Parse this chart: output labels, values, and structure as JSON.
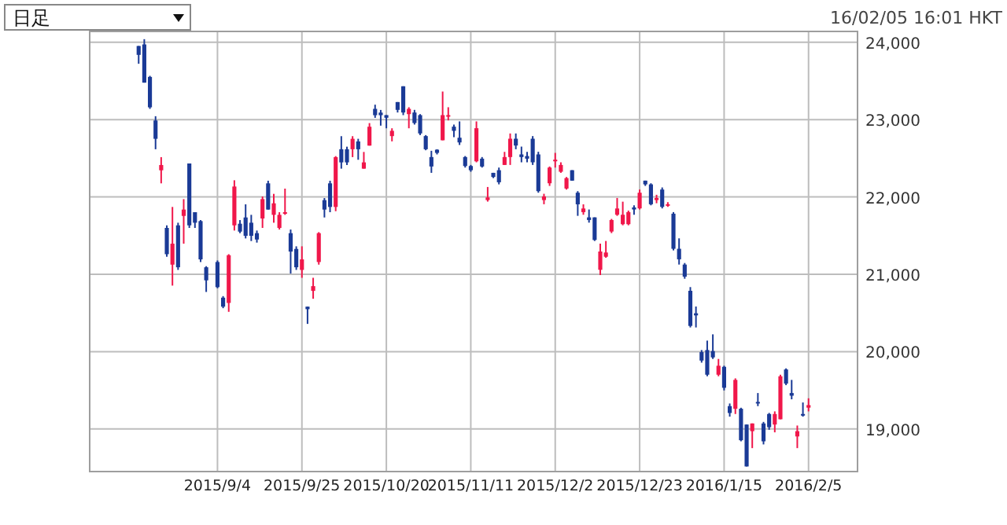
{
  "chart_data": {
    "type": "candlestick",
    "title": "日足",
    "annotations": [
      "16/02/05 16:01 HKT"
    ],
    "categories": [
      null,
      null,
      null,
      null,
      null,
      null,
      null,
      null,
      null,
      null,
      null,
      null,
      null,
      null,
      "2015/9/4",
      null,
      null,
      null,
      null,
      null,
      null,
      null,
      null,
      null,
      null,
      null,
      null,
      null,
      null,
      "2015/9/25",
      null,
      null,
      null,
      null,
      null,
      null,
      null,
      null,
      null,
      null,
      null,
      null,
      null,
      null,
      "2015/10/20",
      null,
      null,
      null,
      null,
      null,
      null,
      null,
      null,
      null,
      null,
      null,
      null,
      null,
      null,
      "2015/11/11",
      null,
      null,
      null,
      null,
      null,
      null,
      null,
      null,
      null,
      null,
      null,
      null,
      null,
      null,
      "2015/12/2",
      null,
      null,
      null,
      null,
      null,
      null,
      null,
      null,
      null,
      null,
      null,
      null,
      null,
      null,
      "2015/12/23",
      null,
      null,
      null,
      null,
      null,
      null,
      null,
      null,
      null,
      null,
      null,
      null,
      null,
      null,
      "2016/1/15",
      null,
      null,
      null,
      null,
      null,
      null,
      null,
      null,
      null,
      null,
      null,
      null,
      null,
      null,
      "2016/2/5"
    ],
    "ohlc": [
      [
        23952,
        23952,
        23722,
        23837
      ],
      [
        23972,
        24040,
        23478,
        23478
      ],
      [
        23552,
        23566,
        23139,
        23159
      ],
      [
        22989,
        23044,
        22617,
        22752
      ],
      [
        22345,
        22515,
        22176,
        22413
      ],
      [
        21600,
        21633,
        21227,
        21260
      ],
      [
        21125,
        21871,
        20854,
        21396
      ],
      [
        21633,
        21667,
        21057,
        21091
      ],
      [
        21755,
        21972,
        21396,
        21837
      ],
      [
        22433,
        22433,
        21600,
        21633
      ],
      [
        21803,
        21803,
        21600,
        21667
      ],
      [
        21688,
        21701,
        21159,
        21193
      ],
      [
        21091,
        21105,
        20772,
        20922
      ],
      null,
      [
        21159,
        21179,
        20820,
        20834
      ],
      [
        20698,
        20718,
        20562,
        20582
      ],
      [
        20630,
        21260,
        20515,
        21247
      ],
      [
        21633,
        22216,
        21566,
        22135
      ],
      [
        21654,
        21701,
        21532,
        21552
      ],
      [
        21735,
        21905,
        21464,
        21498
      ],
      [
        21667,
        21769,
        21430,
        21498
      ],
      [
        21532,
        21566,
        21410,
        21450
      ],
      [
        21722,
        22006,
        21600,
        21972
      ],
      [
        22176,
        22210,
        21837,
        21837
      ],
      [
        21769,
        22040,
        21667,
        21918
      ],
      [
        21600,
        21803,
        21579,
        21769
      ],
      [
        21783,
        22108,
        21769,
        21803
      ],
      [
        21532,
        21579,
        21010,
        21294
      ],
      [
        21328,
        21362,
        21057,
        21091
      ],
      [
        21057,
        21362,
        20955,
        21193
      ],
      [
        20582,
        20582,
        20359,
        20549
      ],
      [
        20786,
        20955,
        20684,
        20847
      ],
      [
        21159,
        21545,
        21125,
        21532
      ],
      [
        21959,
        21986,
        21735,
        21837
      ],
      [
        22176,
        22210,
        21803,
        21871
      ],
      [
        21871,
        22528,
        21816,
        22515
      ],
      [
        22617,
        22786,
        22366,
        22447
      ],
      [
        22617,
        22650,
        22413,
        22447
      ],
      [
        22617,
        22786,
        22515,
        22752
      ],
      [
        22718,
        22752,
        22481,
        22617
      ],
      [
        22366,
        22582,
        22366,
        22447
      ],
      [
        22664,
        22955,
        22664,
        22908
      ],
      [
        23139,
        23193,
        23023,
        23057
      ],
      [
        23091,
        23125,
        22922,
        23057
      ],
      [
        23058,
        23058,
        22888,
        23024
      ],
      [
        22787,
        22888,
        22719,
        22855
      ],
      [
        23227,
        23227,
        23092,
        23126
      ],
      [
        23431,
        23431,
        23058,
        23092
      ],
      [
        23071,
        23160,
        22888,
        23139
      ],
      [
        23092,
        23126,
        22936,
        22956
      ],
      [
        23058,
        23071,
        22800,
        22821
      ],
      [
        22787,
        22800,
        22604,
        22617
      ],
      [
        22516,
        22597,
        22312,
        22394
      ],
      [
        22611,
        22617,
        22550,
        22570
      ],
      [
        22733,
        23363,
        22733,
        23058
      ],
      [
        23044,
        23160,
        22990,
        23058
      ],
      [
        22909,
        22936,
        22773,
        22855
      ],
      [
        22766,
        22977,
        22672,
        22705
      ],
      [
        22516,
        22529,
        22380,
        22400
      ],
      [
        22400,
        22414,
        22326,
        22346
      ],
      [
        22461,
        22977,
        22448,
        22889
      ],
      [
        22495,
        22516,
        22380,
        22394
      ],
      [
        21960,
        22129,
        21940,
        21994
      ],
      [
        22312,
        22312,
        22244,
        22258
      ],
      [
        22346,
        22380,
        22163,
        22190
      ],
      [
        22414,
        22583,
        22414,
        22516
      ],
      [
        22516,
        22821,
        22414,
        22753
      ],
      [
        22753,
        22821,
        22617,
        22665
      ],
      [
        22550,
        22651,
        22448,
        22516
      ],
      [
        22529,
        22583,
        22448,
        22495
      ],
      [
        22753,
        22787,
        22414,
        22448
      ],
      [
        22550,
        22584,
        22055,
        22075
      ],
      [
        21960,
        22041,
        21906,
        22007
      ],
      [
        22177,
        22394,
        22143,
        22380
      ],
      [
        22461,
        22570,
        22380,
        22482
      ],
      [
        22326,
        22448,
        22312,
        22414
      ],
      [
        22109,
        22258,
        22095,
        22244
      ],
      [
        22346,
        22346,
        22211,
        22211
      ],
      [
        22055,
        22075,
        21756,
        21905
      ],
      [
        21804,
        21905,
        21770,
        21851
      ],
      [
        21736,
        21838,
        21668,
        21702
      ],
      [
        21736,
        21736,
        21431,
        21444
      ],
      [
        21058,
        21397,
        20990,
        21295
      ],
      [
        21227,
        21431,
        21214,
        21282
      ],
      [
        21553,
        21716,
        21533,
        21702
      ],
      [
        21770,
        21987,
        21756,
        21851
      ],
      [
        21648,
        21939,
        21634,
        21770
      ],
      [
        21648,
        21824,
        21634,
        21804
      ],
      [
        21865,
        21892,
        21770,
        21838
      ],
      [
        21852,
        22096,
        21838,
        22055
      ],
      [
        22211,
        22211,
        22143,
        22163
      ],
      [
        22163,
        22177,
        21892,
        21906
      ],
      [
        21960,
        22028,
        21919,
        21987
      ],
      [
        22096,
        22123,
        21852,
        21872
      ],
      [
        21892,
        21933,
        21872,
        21906
      ],
      [
        21784,
        21804,
        21309,
        21330
      ],
      [
        21330,
        21465,
        21126,
        21194
      ],
      [
        21126,
        21146,
        20943,
        20970
      ],
      [
        20787,
        20835,
        20313,
        20333
      ],
      [
        20496,
        20584,
        20313,
        20469
      ],
      [
        19994,
        20021,
        19858,
        19885
      ],
      [
        20021,
        20143,
        19682,
        19702
      ],
      [
        20008,
        20224,
        19906,
        19926
      ],
      [
        19702,
        19906,
        19682,
        19818
      ],
      [
        19804,
        19818,
        19499,
        19533
      ],
      [
        19296,
        19330,
        19160,
        19207
      ],
      [
        19262,
        19655,
        19194,
        19635
      ],
      [
        19262,
        19275,
        18841,
        18855
      ],
      [
        19058,
        19058,
        18516,
        18516
      ],
      [
        18972,
        19072,
        18753,
        19072
      ],
      [
        19350,
        19465,
        19296,
        19330
      ],
      [
        19072,
        19092,
        18801,
        18841
      ],
      [
        19194,
        19208,
        18990,
        19024
      ],
      [
        19058,
        19228,
        18957,
        19194
      ],
      [
        19126,
        19702,
        19126,
        19682
      ],
      [
        19770,
        19784,
        19567,
        19587
      ],
      [
        19465,
        19635,
        19384,
        19431
      ],
      [
        18904,
        19045,
        18753,
        18972
      ],
      [
        19194,
        19343,
        19160,
        19174
      ],
      [
        19276,
        19397,
        19228,
        19309
      ]
    ],
    "colors": [
      "#1a3a96",
      "#1a3a96",
      "#1a3a96",
      "#1a3a96",
      "#f0174a",
      "#1a3a96",
      "#f0174a",
      "#1a3a96",
      "#f0174a",
      "#1a3a96",
      "#1a3a96",
      "#1a3a96",
      "#1a3a96",
      null,
      "#1a3a96",
      "#1a3a96",
      "#f0174a",
      "#f0174a",
      "#1a3a96",
      "#1a3a96",
      "#1a3a96",
      "#1a3a96",
      "#f0174a",
      "#1a3a96",
      "#f0174a",
      "#f0174a",
      "#f0174a",
      "#1a3a96",
      "#1a3a96",
      "#f0174a",
      "#1a3a96",
      "#f0174a",
      "#f0174a",
      "#1a3a96",
      "#1a3a96",
      "#f0174a",
      "#1a3a96",
      "#1a3a96",
      "#f0174a",
      "#1a3a96",
      "#f0174a",
      "#f0174a",
      "#1a3a96",
      "#1a3a96",
      "#1a3a96",
      "#f0174a",
      "#1a3a96",
      "#1a3a96",
      "#f0174a",
      "#1a3a96",
      "#1a3a96",
      "#1a3a96",
      "#1a3a96",
      "#1a3a96",
      "#f0174a",
      "#f0174a",
      "#1a3a96",
      "#1a3a96",
      "#1a3a96",
      "#1a3a96",
      "#f0174a",
      "#1a3a96",
      "#f0174a",
      "#1a3a96",
      "#1a3a96",
      "#f0174a",
      "#f0174a",
      "#1a3a96",
      "#1a3a96",
      "#1a3a96",
      "#1a3a96",
      "#1a3a96",
      "#f0174a",
      "#f0174a",
      "#f0174a",
      "#f0174a",
      "#f0174a",
      "#1a3a96",
      "#1a3a96",
      "#f0174a",
      "#1a3a96",
      "#1a3a96",
      "#f0174a",
      "#f0174a",
      "#f0174a",
      "#f0174a",
      "#f0174a",
      "#f0174a",
      "#1a3a96",
      "#f0174a",
      "#1a3a96",
      "#1a3a96",
      "#f0174a",
      "#1a3a96",
      "#f0174a",
      "#1a3a96",
      "#1a3a96",
      "#1a3a96",
      "#1a3a96",
      "#1a3a96",
      "#1a3a96",
      "#1a3a96",
      "#1a3a96",
      "#f0174a",
      "#1a3a96",
      "#1a3a96",
      "#f0174a",
      "#1a3a96",
      "#1a3a96",
      "#f0174a",
      "#1a3a96",
      "#1a3a96",
      "#1a3a96",
      "#f0174a",
      "#f0174a",
      "#1a3a96",
      "#1a3a96",
      "#f0174a",
      "#1a3a96",
      "#f0174a"
    ],
    "ylim": [
      18450,
      24140
    ],
    "yticks": [
      {
        "value": 19000,
        "label": "19,000"
      },
      {
        "value": 20000,
        "label": "20,000"
      },
      {
        "value": 21000,
        "label": "21,000"
      },
      {
        "value": 22000,
        "label": "22,000"
      },
      {
        "value": 23000,
        "label": "23,000"
      },
      {
        "value": 24000,
        "label": "24,000"
      }
    ],
    "grid": true
  }
}
